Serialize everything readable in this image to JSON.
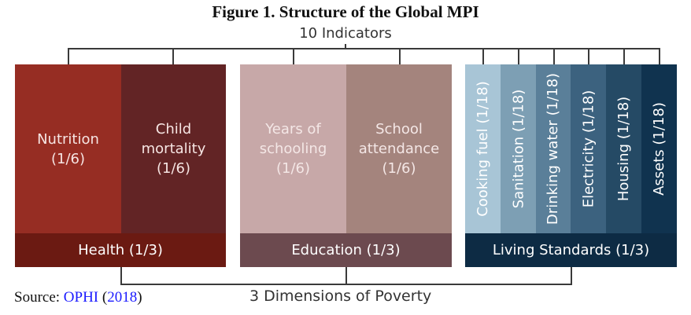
{
  "title": "Figure 1. Structure of the Global MPI",
  "top_label": "10 Indicators",
  "bottom_label": "3 Dimensions of Poverty",
  "source": {
    "prefix": "Source: ",
    "org": "OPHI",
    "open": " (",
    "year": "2018",
    "close": ")"
  },
  "health": {
    "label": "Health (1/3)",
    "indicators": [
      {
        "line1": "Nutrition",
        "line2": "(1/6)"
      },
      {
        "line1": "Child",
        "line2": "mortality",
        "line3": "(1/6)"
      }
    ]
  },
  "education": {
    "label": "Education (1/3)",
    "indicators": [
      {
        "line1": "Years of",
        "line2": "schooling",
        "line3": "(1/6)"
      },
      {
        "line1": "School",
        "line2": "attendance",
        "line3": "(1/6)"
      }
    ]
  },
  "living": {
    "label": "Living Standards (1/3)",
    "indicators": [
      "Cooking fuel (1/18)",
      "Sanitation (1/18)",
      "Drinking water (1/18)",
      "Electricity (1/18)",
      "Housing (1/18)",
      "Assets (1/18)"
    ]
  },
  "colors": {
    "nutrition": "#962d23",
    "child_mortality": "#622425",
    "health_bar": "#6b1a12",
    "years_schooling": "#c7a8a8",
    "school_attendance": "#a4847d",
    "education_bar": "#6c4a4f",
    "education_text": "#f4e7e6",
    "living": [
      "#a8c5d6",
      "#7d9fb4",
      "#5a7f99",
      "#3c627f",
      "#254a65",
      "#10334f"
    ],
    "living_bar": "#0d2b44"
  }
}
